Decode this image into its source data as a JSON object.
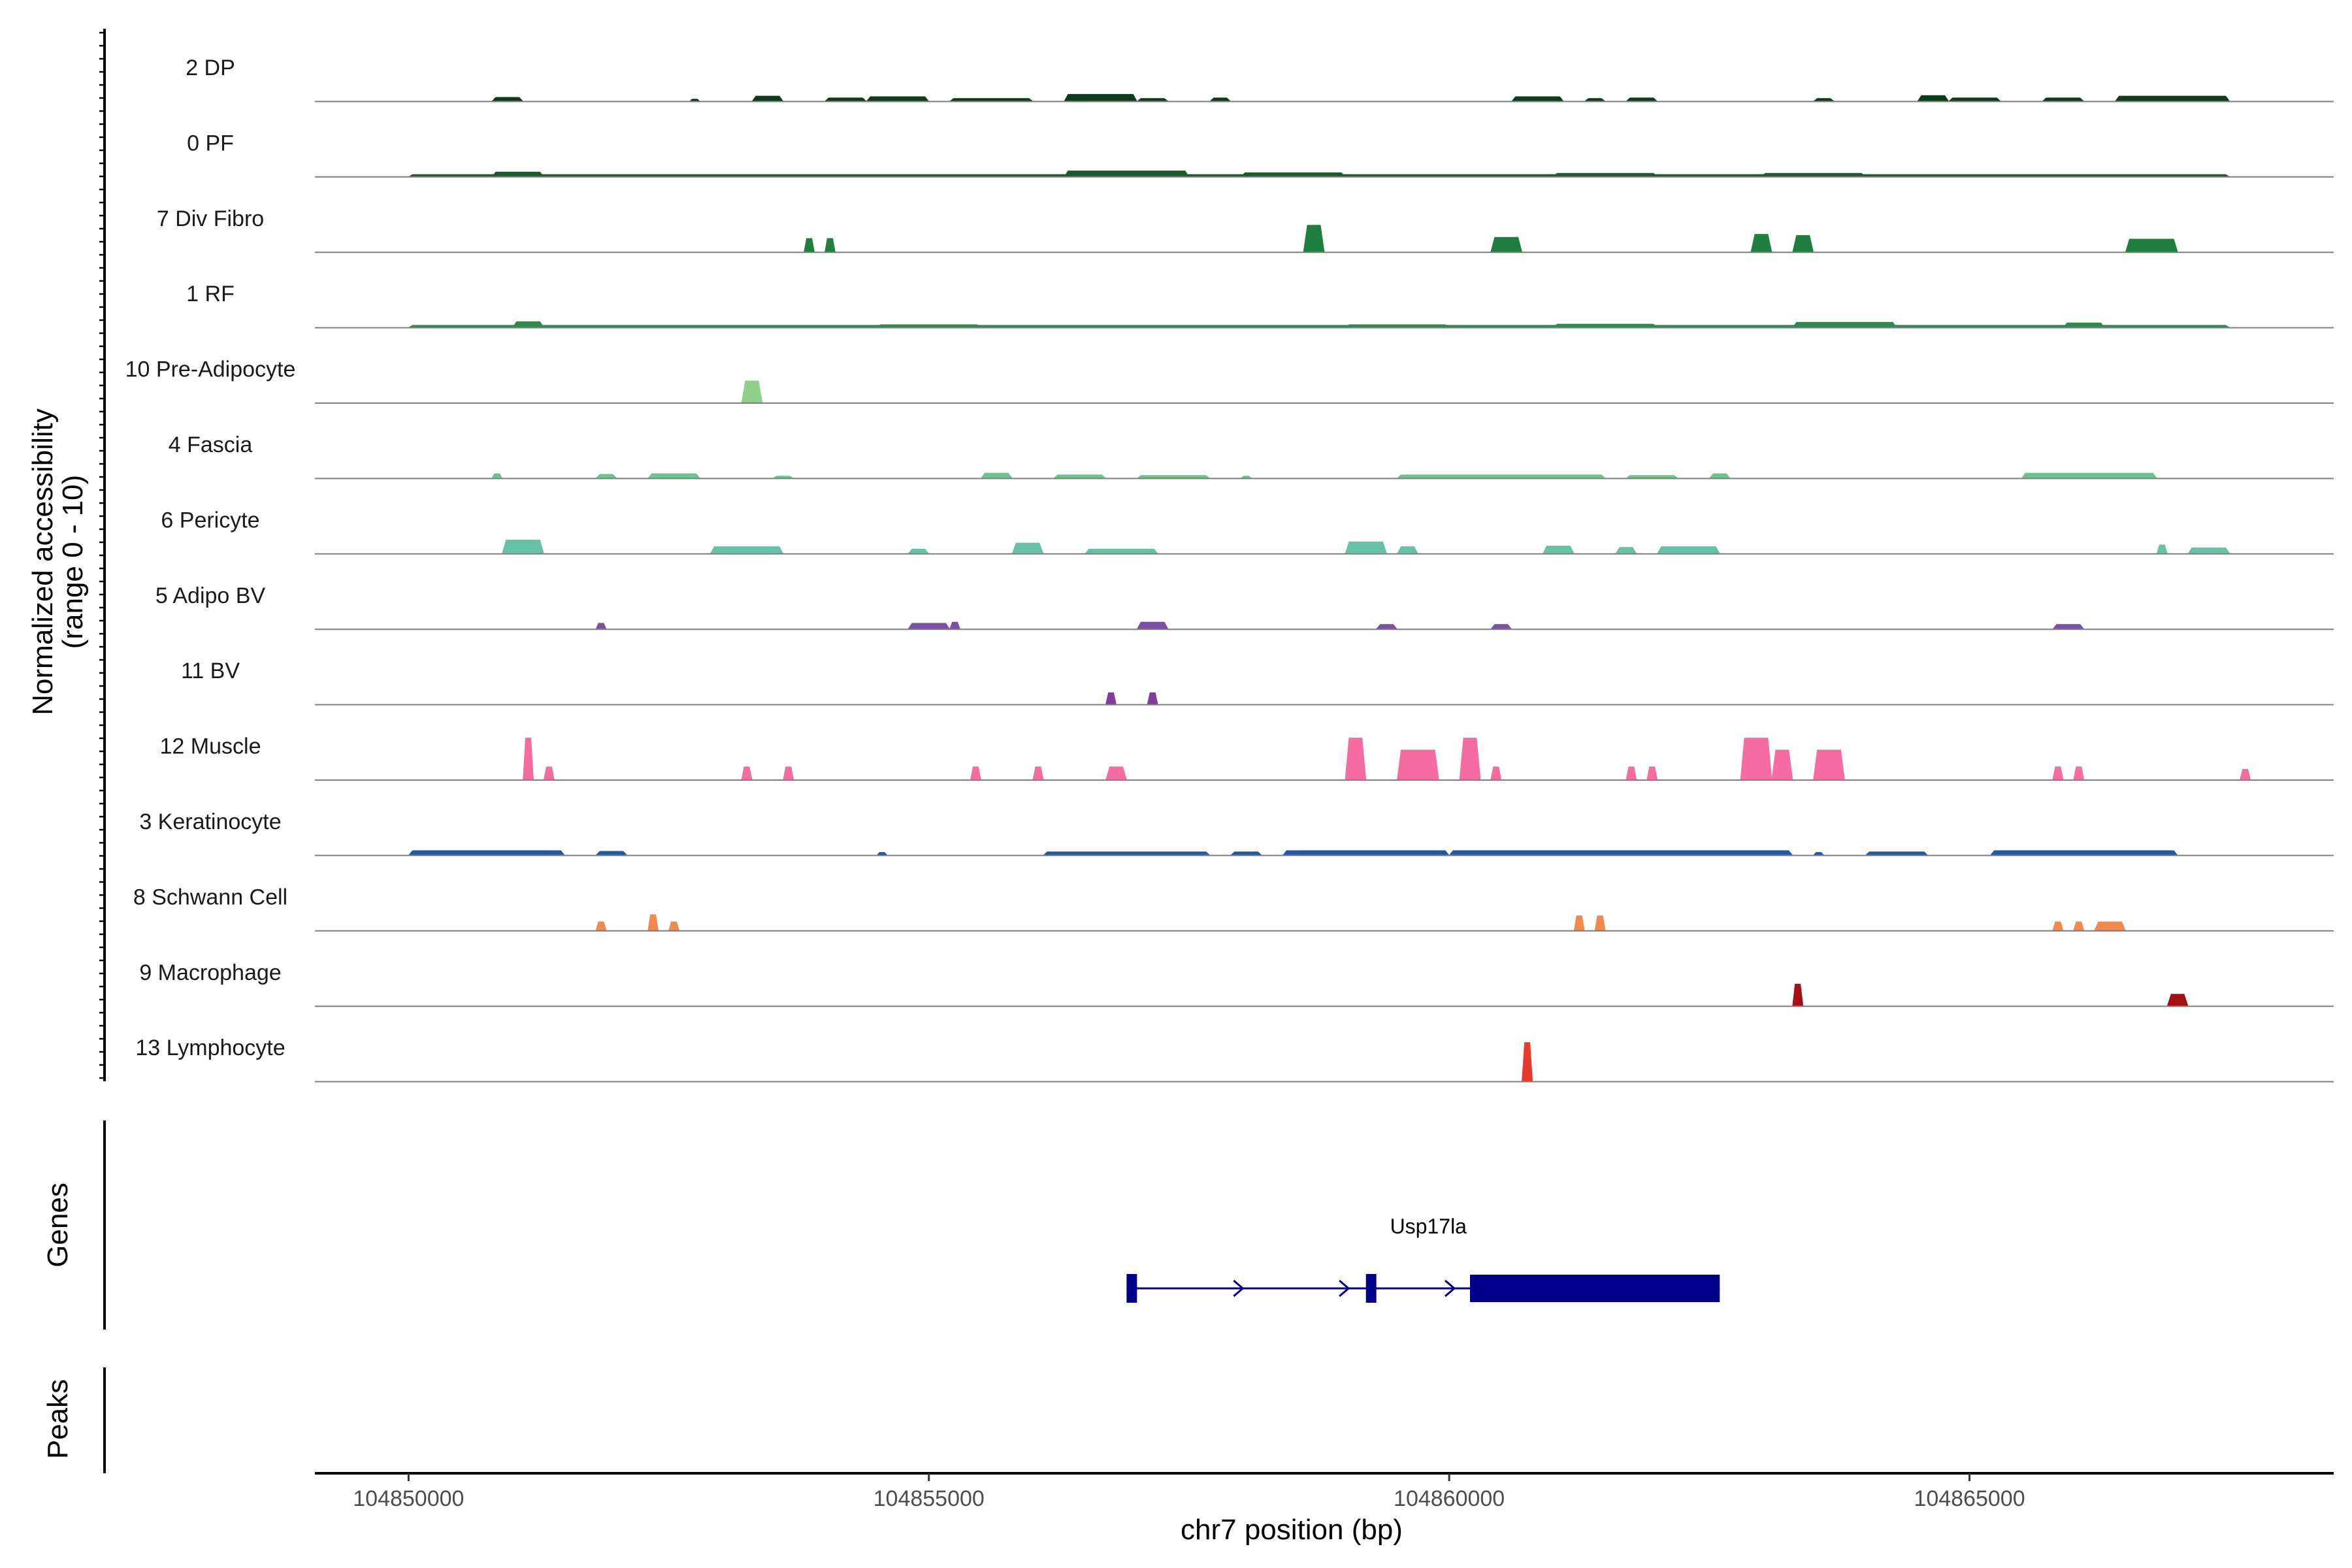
{
  "chart_data": {
    "type": "area",
    "subtype": "genome-coverage-tracks",
    "ylabel": "Normalized accessibility\n(range 0 - 10)",
    "ylim": [
      0,
      10
    ],
    "xlabel": "chr7 position (bp)",
    "xlim": [
      104849100,
      104868500
    ],
    "xticks": [
      104850000,
      104855000,
      104860000,
      104865000
    ],
    "xtick_labels": [
      "104850000",
      "104855000",
      "104860000",
      "104865000"
    ],
    "genes_label": "Genes",
    "peaks_label": "Peaks",
    "grid": false,
    "legend": "none",
    "tracks": [
      {
        "name": "2 DP",
        "color": "#0b3d1c",
        "peaks": [
          [
            104850800,
            104851100,
            0.7
          ],
          [
            104852700,
            104852800,
            0.4
          ],
          [
            104853300,
            104853600,
            0.9
          ],
          [
            104854000,
            104854400,
            0.6
          ],
          [
            104854400,
            104855000,
            0.8
          ],
          [
            104855200,
            104856000,
            0.5
          ],
          [
            104856300,
            104857000,
            1.2
          ],
          [
            104857000,
            104857300,
            0.5
          ],
          [
            104857700,
            104857900,
            0.6
          ],
          [
            104860600,
            104861100,
            0.8
          ],
          [
            104861300,
            104861500,
            0.5
          ],
          [
            104861700,
            104862000,
            0.6
          ],
          [
            104863500,
            104863700,
            0.5
          ],
          [
            104864500,
            104864800,
            1.0
          ],
          [
            104864800,
            104865300,
            0.6
          ],
          [
            104865700,
            104866100,
            0.6
          ],
          [
            104866400,
            104867500,
            0.9
          ]
        ]
      },
      {
        "name": "0 PF",
        "color": "#1a5a2c",
        "peaks": [
          [
            104850000,
            104867500,
            0.4
          ],
          [
            104850800,
            104851300,
            0.8
          ],
          [
            104856300,
            104857500,
            1.0
          ],
          [
            104858000,
            104859000,
            0.7
          ],
          [
            104861000,
            104862000,
            0.6
          ],
          [
            104863000,
            104864000,
            0.6
          ]
        ]
      },
      {
        "name": "7 Div Fibro",
        "color": "#1f7f3f",
        "peaks": [
          [
            104853800,
            104853900,
            2.3
          ],
          [
            104854000,
            104854100,
            2.3
          ],
          [
            104858600,
            104858800,
            4.5
          ],
          [
            104860400,
            104860700,
            2.5
          ],
          [
            104862900,
            104863100,
            3.0
          ],
          [
            104863300,
            104863500,
            2.8
          ],
          [
            104866500,
            104867000,
            2.2
          ]
        ]
      },
      {
        "name": "1 RF",
        "color": "#2e8b4a",
        "peaks": [
          [
            104850000,
            104867500,
            0.4
          ],
          [
            104851000,
            104851300,
            1.0
          ],
          [
            104854500,
            104855500,
            0.5
          ],
          [
            104859000,
            104860000,
            0.5
          ],
          [
            104861000,
            104862000,
            0.6
          ],
          [
            104863300,
            104864300,
            0.9
          ],
          [
            104865900,
            104866300,
            0.8
          ]
        ]
      },
      {
        "name": "10 Pre-Adipocyte",
        "color": "#8fd18a",
        "peaks": [
          [
            104853200,
            104853400,
            3.7
          ]
        ]
      },
      {
        "name": "4 Fascia",
        "color": "#6cc48a",
        "peaks": [
          [
            104850800,
            104850900,
            0.8
          ],
          [
            104851800,
            104852000,
            0.7
          ],
          [
            104852300,
            104852800,
            0.8
          ],
          [
            104853500,
            104853700,
            0.4
          ],
          [
            104855500,
            104855800,
            0.9
          ],
          [
            104856200,
            104856700,
            0.6
          ],
          [
            104857000,
            104857700,
            0.5
          ],
          [
            104858000,
            104858100,
            0.4
          ],
          [
            104859500,
            104861500,
            0.6
          ],
          [
            104861700,
            104862200,
            0.5
          ],
          [
            104862500,
            104862700,
            0.8
          ],
          [
            104865500,
            104866800,
            0.9
          ]
        ]
      },
      {
        "name": "6 Pericyte",
        "color": "#66c2a5",
        "peaks": [
          [
            104850900,
            104851300,
            2.3
          ],
          [
            104852900,
            104853600,
            1.2
          ],
          [
            104854800,
            104855000,
            0.8
          ],
          [
            104855800,
            104856100,
            1.8
          ],
          [
            104856500,
            104857200,
            0.8
          ],
          [
            104859000,
            104859400,
            2.0
          ],
          [
            104859500,
            104859700,
            1.2
          ],
          [
            104860900,
            104861200,
            1.3
          ],
          [
            104861600,
            104861800,
            1.1
          ],
          [
            104862000,
            104862600,
            1.2
          ],
          [
            104866800,
            104866900,
            1.5
          ],
          [
            104867100,
            104867500,
            1.0
          ]
        ]
      },
      {
        "name": "5 Adipo BV",
        "color": "#7b4fa3",
        "peaks": [
          [
            104851800,
            104851900,
            1.0
          ],
          [
            104854800,
            104855200,
            1.0
          ],
          [
            104855200,
            104855300,
            1.2
          ],
          [
            104857000,
            104857300,
            1.2
          ],
          [
            104859300,
            104859500,
            0.8
          ],
          [
            104860400,
            104860600,
            0.8
          ],
          [
            104865800,
            104866100,
            0.8
          ]
        ]
      },
      {
        "name": "11 BV",
        "color": "#7e3f98",
        "peaks": [
          [
            104856700,
            104856800,
            2.0
          ],
          [
            104857100,
            104857200,
            2.0
          ]
        ]
      },
      {
        "name": "12 Muscle",
        "color": "#f46ca0",
        "peaks": [
          [
            104851100,
            104851200,
            7.0
          ],
          [
            104851300,
            104851400,
            2.2
          ],
          [
            104853200,
            104853300,
            2.2
          ],
          [
            104853600,
            104853700,
            2.2
          ],
          [
            104855400,
            104855500,
            2.2
          ],
          [
            104856000,
            104856100,
            2.2
          ],
          [
            104856700,
            104856900,
            2.2
          ],
          [
            104859000,
            104859200,
            7.0
          ],
          [
            104859500,
            104859900,
            5.0
          ],
          [
            104860100,
            104860300,
            7.0
          ],
          [
            104860400,
            104860500,
            2.2
          ],
          [
            104861700,
            104861800,
            2.2
          ],
          [
            104861900,
            104862000,
            2.2
          ],
          [
            104862800,
            104863100,
            7.0
          ],
          [
            104863100,
            104863300,
            5.0
          ],
          [
            104863500,
            104863800,
            5.0
          ],
          [
            104865800,
            104865900,
            2.2
          ],
          [
            104866000,
            104866100,
            2.2
          ],
          [
            104867600,
            104867700,
            1.8
          ]
        ]
      },
      {
        "name": "3 Keratinocyte",
        "color": "#1f5aa6",
        "peaks": [
          [
            104850000,
            104851500,
            0.8
          ],
          [
            104851800,
            104852100,
            0.7
          ],
          [
            104854500,
            104854600,
            0.5
          ],
          [
            104856100,
            104857700,
            0.6
          ],
          [
            104857900,
            104858200,
            0.6
          ],
          [
            104858400,
            104860000,
            0.8
          ],
          [
            104860000,
            104863300,
            0.8
          ],
          [
            104863500,
            104863600,
            0.5
          ],
          [
            104864000,
            104864600,
            0.6
          ],
          [
            104865200,
            104867000,
            0.8
          ]
        ]
      },
      {
        "name": "8 Schwann Cell",
        "color": "#f4894b",
        "peaks": [
          [
            104851800,
            104851900,
            1.5
          ],
          [
            104852300,
            104852400,
            2.7
          ],
          [
            104852500,
            104852600,
            1.5
          ],
          [
            104861200,
            104861300,
            2.5
          ],
          [
            104861400,
            104861500,
            2.5
          ],
          [
            104865800,
            104865900,
            1.5
          ],
          [
            104866000,
            104866100,
            1.5
          ],
          [
            104866200,
            104866500,
            1.5
          ]
        ]
      },
      {
        "name": "9 Macrophage",
        "color": "#a50f15",
        "peaks": [
          [
            104863300,
            104863400,
            3.7
          ],
          [
            104866900,
            104867100,
            2.0
          ]
        ]
      },
      {
        "name": "13 Lymphocyte",
        "color": "#e8392c",
        "peaks": [
          [
            104860700,
            104860800,
            6.5
          ]
        ]
      }
    ],
    "gene": {
      "name": "Usp17la",
      "color": "#00008b",
      "start": 104856900,
      "end": 104862600,
      "strand": "+",
      "exons": [
        [
          104856900,
          104857000
        ],
        [
          104859200,
          104859300
        ],
        [
          104860200,
          104862600
        ]
      ]
    }
  }
}
